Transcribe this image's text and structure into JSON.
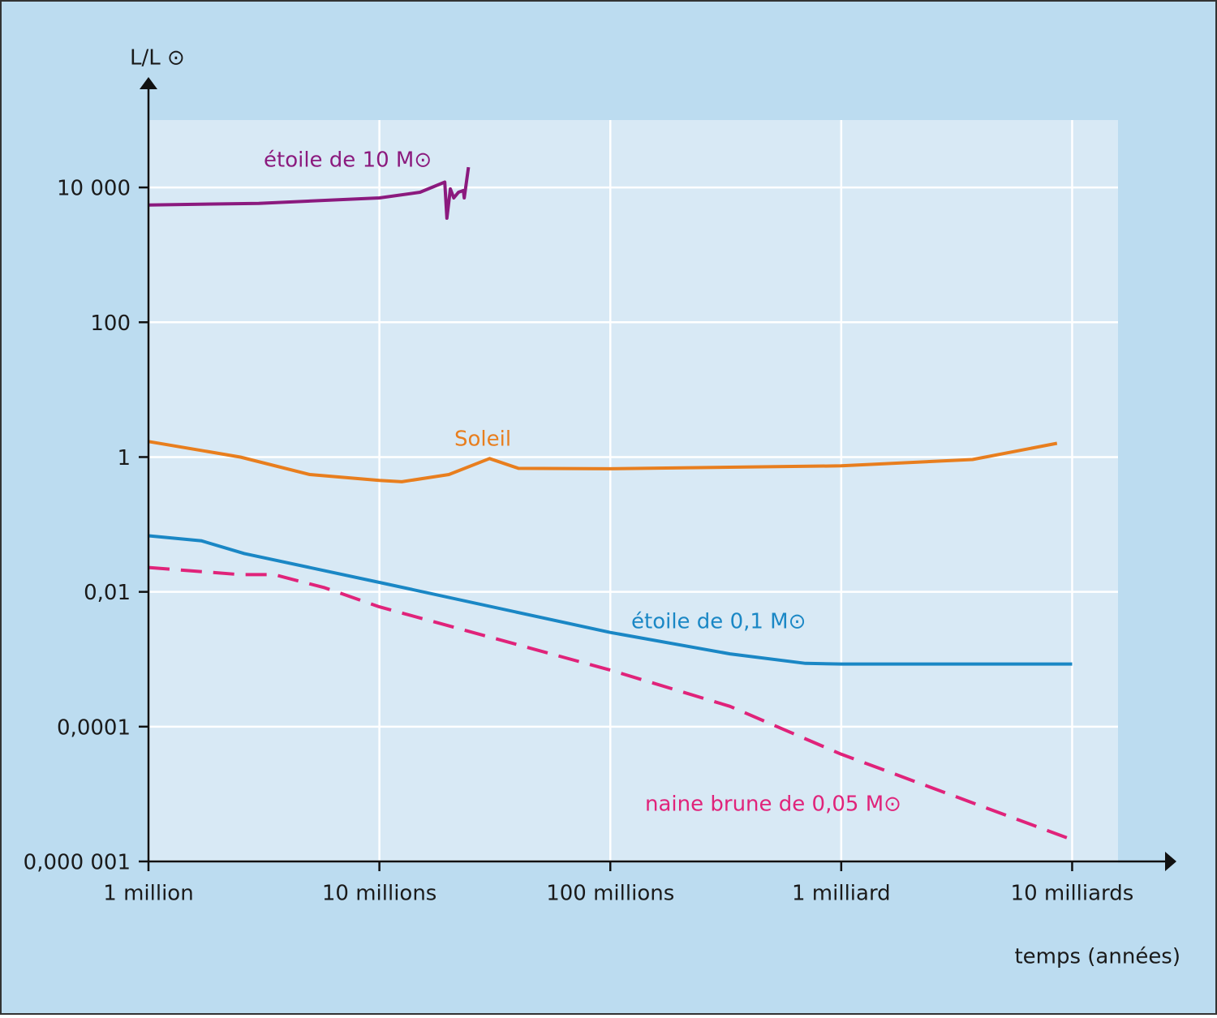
{
  "chart_data": {
    "type": "line",
    "y_label": "L/L ⊙",
    "x_label": "temps (années)",
    "log_x": true,
    "log_y": true,
    "grid": true,
    "xlim": [
      1000000,
      15800000000
    ],
    "xticks": [
      {
        "value": 1000000,
        "label": "1 million"
      },
      {
        "value": 10000000,
        "label": "10 millions"
      },
      {
        "value": 100000000,
        "label": "100 millions"
      },
      {
        "value": 1000000000,
        "label": "1 milliard"
      },
      {
        "value": 10000000000,
        "label": "10 milliards"
      }
    ],
    "ylim": [
      1e-06,
      100000
    ],
    "yticks": [
      {
        "value": 1e-06,
        "label": "0,000 001"
      },
      {
        "value": 0.0001,
        "label": "0,0001"
      },
      {
        "value": 0.01,
        "label": "0,01"
      },
      1,
      100,
      {
        "value": 10000,
        "label": "10 000"
      }
    ],
    "series": [
      {
        "name": "étoile de 10 M⊙",
        "color": "#8b1a7e",
        "dashed": false,
        "x": [
          1000000,
          3000000,
          10000000,
          15000000,
          19200000,
          19600000,
          20300000,
          21000000,
          22000000,
          23100000,
          23300000,
          24300000
        ],
        "values": [
          5500,
          5800,
          7000,
          8500,
          12000,
          3500,
          9500,
          7000,
          8500,
          9000,
          7000,
          20000
        ]
      },
      {
        "name": "Soleil",
        "color": "#e87e1e",
        "dashed": false,
        "x": [
          1000000,
          2500000,
          5000000,
          10000000,
          12500000,
          20000000,
          30000000,
          40000000,
          100000000,
          1000000000,
          3700000000,
          8600000000
        ],
        "values": [
          1.7,
          1.0,
          0.55,
          0.45,
          0.43,
          0.55,
          0.95,
          0.68,
          0.67,
          0.74,
          0.92,
          1.6
        ]
      },
      {
        "name": "étoile de 0,1 M⊙",
        "color": "#1a87c5",
        "dashed": false,
        "x": [
          1000000,
          1700000,
          2600000,
          10000000,
          100000000,
          330000000,
          700000000,
          1000000000,
          10000000000
        ],
        "values": [
          0.068,
          0.057,
          0.037,
          0.0138,
          0.0025,
          0.0012,
          0.00087,
          0.00085,
          0.00085
        ]
      },
      {
        "name": "naine brune de 0,05 M⊙",
        "color": "#e0237a",
        "dashed": true,
        "x": [
          1000000,
          2500000,
          3500000,
          5800000,
          10000000,
          100000000,
          330000000,
          1000000000,
          10000000000
        ],
        "values": [
          0.023,
          0.018,
          0.018,
          0.0115,
          0.006,
          0.00069,
          0.0002,
          3.9e-05,
          2.1e-06
        ]
      }
    ]
  }
}
